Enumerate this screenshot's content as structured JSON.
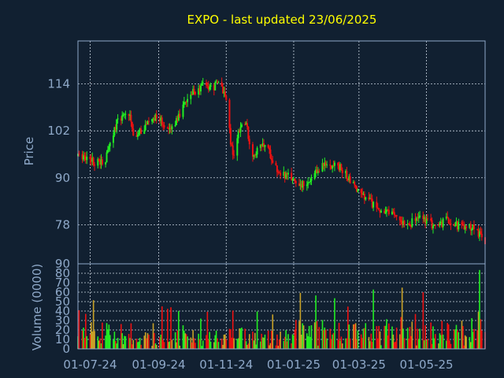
{
  "chart_data": [
    {
      "type": "candlestick",
      "title": "EXPO - last updated 23/06/2025",
      "ylabel": "Price",
      "ylim": [
        68,
        125
      ],
      "yticks": [
        78,
        90,
        102,
        114
      ],
      "x_range": [
        "2024-06-20",
        "2025-06-23"
      ],
      "xticks": [
        {
          "date": "2024-07-01",
          "label": "01-07-24"
        },
        {
          "date": "2024-09-01",
          "label": "01-09-24"
        },
        {
          "date": "2024-11-01",
          "label": "01-11-24"
        },
        {
          "date": "2025-01-01",
          "label": "01-01-25"
        },
        {
          "date": "2025-03-01",
          "label": "01-03-25"
        },
        {
          "date": "2025-05-01",
          "label": "01-05-25"
        }
      ],
      "grid": true,
      "series": [
        {
          "values": [
            [
              "2024-06-20",
              95.5
            ],
            [
              "2024-07-01",
              95.0
            ],
            [
              "2024-07-05",
              94.0
            ],
            [
              "2024-07-15",
              94.5
            ],
            [
              "2024-07-20",
              100.0
            ],
            [
              "2024-07-25",
              104.0
            ],
            [
              "2024-08-05",
              106.5
            ],
            [
              "2024-08-10",
              100.0
            ],
            [
              "2024-08-20",
              103.5
            ],
            [
              "2024-08-30",
              106.0
            ],
            [
              "2024-09-05",
              104.0
            ],
            [
              "2024-09-10",
              101.5
            ],
            [
              "2024-09-20",
              106.5
            ],
            [
              "2024-10-01",
              111.5
            ],
            [
              "2024-10-10",
              113.5
            ],
            [
              "2024-10-20",
              113.0
            ],
            [
              "2024-10-27",
              114.5
            ],
            [
              "2024-11-01",
              110.0
            ],
            [
              "2024-11-05",
              99.0
            ],
            [
              "2024-11-08",
              95.0
            ],
            [
              "2024-11-12",
              102.0
            ],
            [
              "2024-11-18",
              104.5
            ],
            [
              "2024-11-25",
              96.0
            ],
            [
              "2024-12-01",
              97.5
            ],
            [
              "2024-12-06",
              98.5
            ],
            [
              "2024-12-12",
              95.5
            ],
            [
              "2024-12-18",
              91.5
            ],
            [
              "2024-12-25",
              90.5
            ],
            [
              "2025-01-05",
              89.0
            ],
            [
              "2025-01-12",
              87.5
            ],
            [
              "2025-01-18",
              89.5
            ],
            [
              "2025-01-25",
              93.0
            ],
            [
              "2025-02-05",
              93.5
            ],
            [
              "2025-02-12",
              92.5
            ],
            [
              "2025-02-18",
              90.5
            ],
            [
              "2025-02-25",
              88.0
            ],
            [
              "2025-03-03",
              85.5
            ],
            [
              "2025-03-10",
              84.0
            ],
            [
              "2025-03-17",
              82.5
            ],
            [
              "2025-03-25",
              81.0
            ],
            [
              "2025-04-03",
              80.0
            ],
            [
              "2025-04-10",
              79.0
            ],
            [
              "2025-04-17",
              78.5
            ],
            [
              "2025-04-25",
              80.0
            ],
            [
              "2025-05-03",
              78.5
            ],
            [
              "2025-05-12",
              77.5
            ],
            [
              "2025-05-20",
              79.5
            ],
            [
              "2025-05-28",
              78.0
            ],
            [
              "2025-06-05",
              77.0
            ],
            [
              "2025-06-12",
              77.5
            ],
            [
              "2025-06-18",
              75.5
            ],
            [
              "2025-06-23",
              73.5
            ]
          ]
        }
      ]
    },
    {
      "type": "bar",
      "ylabel": "Volume (0000)",
      "ylim": [
        0,
        90
      ],
      "ytick_labels": [
        "90",
        "80",
        "70",
        "60",
        "50",
        "40",
        "30",
        "20",
        "10",
        "0"
      ],
      "volume_max_by_month": [
        [
          "2024-06",
          46
        ],
        [
          "2024-07",
          56
        ],
        [
          "2024-08",
          36
        ],
        [
          "2024-09",
          49
        ],
        [
          "2024-10",
          40
        ],
        [
          "2024-11",
          45
        ],
        [
          "2024-12",
          40
        ],
        [
          "2025-01",
          62
        ],
        [
          "2025-02",
          57
        ],
        [
          "2025-03",
          65
        ],
        [
          "2025-04",
          77
        ],
        [
          "2025-05",
          60
        ],
        [
          "2025-06",
          84
        ]
      ]
    }
  ],
  "colors": {
    "background": "#112031",
    "title": "#FFFF00",
    "axis_text": "#8FA9C9",
    "axis_line": "#8FA9C9",
    "grid": "#C8D3DF",
    "up": "#22EE22",
    "down": "#EE1111",
    "volume_mid": "#C9A227"
  }
}
